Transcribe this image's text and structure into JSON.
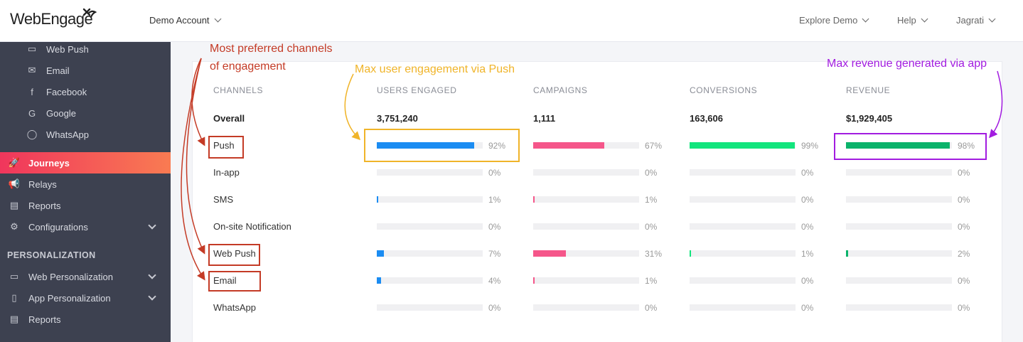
{
  "header": {
    "logo": "WebEngage",
    "account": "Demo Account",
    "nav": [
      "Explore Demo",
      "Help",
      "Jagrati"
    ]
  },
  "sidebar": {
    "sub_items": [
      {
        "label": "Web Push",
        "icon": "web-push-icon",
        "glyph": "▭"
      },
      {
        "label": "Email",
        "icon": "email-icon",
        "glyph": "✉"
      },
      {
        "label": "Facebook",
        "icon": "facebook-icon",
        "glyph": "f"
      },
      {
        "label": "Google",
        "icon": "google-icon",
        "glyph": "G"
      },
      {
        "label": "WhatsApp",
        "icon": "whatsapp-icon",
        "glyph": "◯"
      }
    ],
    "items": [
      {
        "label": "Journeys",
        "icon": "rocket-icon",
        "glyph": "🚀",
        "active": true
      },
      {
        "label": "Relays",
        "icon": "megaphone-icon",
        "glyph": "📢"
      },
      {
        "label": "Reports",
        "icon": "report-icon",
        "glyph": "▤"
      },
      {
        "label": "Configurations",
        "icon": "gear-icon",
        "glyph": "⚙",
        "expandable": true
      }
    ],
    "section_title": "PERSONALIZATION",
    "personalization_items": [
      {
        "label": "Web Personalization",
        "icon": "monitor-icon",
        "glyph": "▭",
        "expandable": true
      },
      {
        "label": "App Personalization",
        "icon": "phone-icon",
        "glyph": "▯",
        "expandable": true
      },
      {
        "label": "Reports",
        "icon": "report-icon",
        "glyph": "▤"
      }
    ]
  },
  "table": {
    "headers": [
      "CHANNELS",
      "USERS ENGAGED",
      "CAMPAIGNS",
      "CONVERSIONS",
      "REVENUE"
    ],
    "overall": {
      "label": "Overall",
      "users": "3,751,240",
      "campaigns": "1,111",
      "conversions": "163,606",
      "revenue": "$1,929,405"
    },
    "metric_colors": {
      "users": "#1b8cf2",
      "campaigns": "#f5568a",
      "conversions": "#12e57d",
      "revenue": "#0bb36b"
    },
    "rows": [
      {
        "channel": "Push",
        "users": 92,
        "campaigns": 67,
        "conversions": 99,
        "revenue": 98
      },
      {
        "channel": "In-app",
        "users": 0,
        "campaigns": 0,
        "conversions": 0,
        "revenue": 0
      },
      {
        "channel": "SMS",
        "users": 1,
        "campaigns": 1,
        "conversions": 0,
        "revenue": 0
      },
      {
        "channel": "On-site Notification",
        "users": 0,
        "campaigns": 0,
        "conversions": 0,
        "revenue": 0
      },
      {
        "channel": "Web Push",
        "users": 7,
        "campaigns": 31,
        "conversions": 1,
        "revenue": 2
      },
      {
        "channel": "Email",
        "users": 4,
        "campaigns": 1,
        "conversions": 0,
        "revenue": 0
      },
      {
        "channel": "WhatsApp",
        "users": 0,
        "campaigns": 0,
        "conversions": 0,
        "revenue": 0
      }
    ]
  },
  "annotations": {
    "preferred_line1": "Most preferred channels",
    "preferred_line2": "of engagement",
    "push_engagement": "Max user engagement via Push",
    "app_revenue": "Max revenue generated via app",
    "colors": {
      "red": "#c43b26",
      "yellow": "#f0b429",
      "purple": "#a21ce0"
    }
  }
}
